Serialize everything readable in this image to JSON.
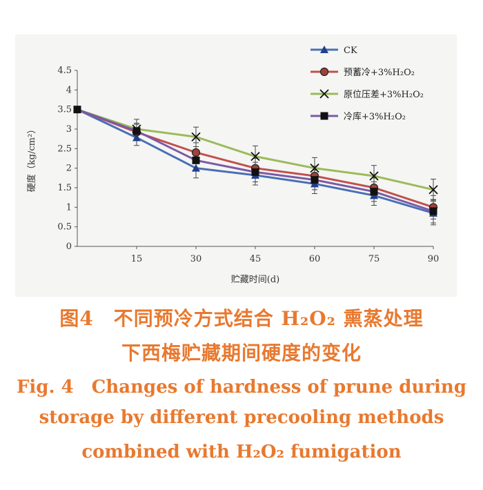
{
  "chart_data": {
    "type": "line",
    "x": [
      0,
      15,
      30,
      45,
      60,
      75,
      90
    ],
    "x_tick_labels": [
      "15",
      "30",
      "45",
      "60",
      "75",
      "90"
    ],
    "xlabel": "贮藏时间(d)",
    "ylabel": "硬度（kg/cm²）",
    "ylim": [
      0,
      4.5
    ],
    "y_ticks": [
      "0",
      "0.5",
      "1",
      "1.5",
      "2",
      "2.5",
      "3",
      "3.5",
      "4",
      "4.5"
    ],
    "grid": false,
    "legend_position": "top-right",
    "series": [
      {
        "name": "CK",
        "color": "#4a6fb5",
        "marker": "triangle",
        "values": [
          3.5,
          2.78,
          2.0,
          1.82,
          1.6,
          1.3,
          0.85
        ],
        "error": [
          0,
          0.2,
          0.25,
          0.25,
          0.25,
          0.25,
          0.3
        ]
      },
      {
        "name": "预蓄冷+3%H₂O₂",
        "color": "#c0504d",
        "marker": "circle",
        "values": [
          3.5,
          2.92,
          2.4,
          2.0,
          1.8,
          1.5,
          1.0
        ],
        "error": [
          0,
          0.2,
          0.25,
          0.25,
          0.25,
          0.25,
          0.3
        ]
      },
      {
        "name": "原位压差+3%H₂O₂",
        "color": "#9bbb59",
        "marker": "x",
        "values": [
          3.5,
          3.0,
          2.8,
          2.3,
          2.0,
          1.8,
          1.45
        ],
        "error": [
          0,
          0.25,
          0.25,
          0.27,
          0.27,
          0.27,
          0.27
        ]
      },
      {
        "name": "冷库+3%H₂O₂",
        "color": "#7b5aa6",
        "marker": "square",
        "values": [
          3.5,
          2.95,
          2.2,
          1.9,
          1.7,
          1.4,
          0.9
        ],
        "error": [
          0,
          0.2,
          0.25,
          0.25,
          0.25,
          0.25,
          0.3
        ]
      }
    ]
  },
  "caption": {
    "cn_line1": "图4　不同预冷方式结合 H₂O₂ 熏蒸处理",
    "cn_line2": "下西梅贮藏期间硬度的变化",
    "en_line1": "Fig. 4　Changes of hardness of prune during",
    "en_line2": "storage by different precooling methods",
    "en_line3": "combined with H₂O₂ fumigation"
  }
}
